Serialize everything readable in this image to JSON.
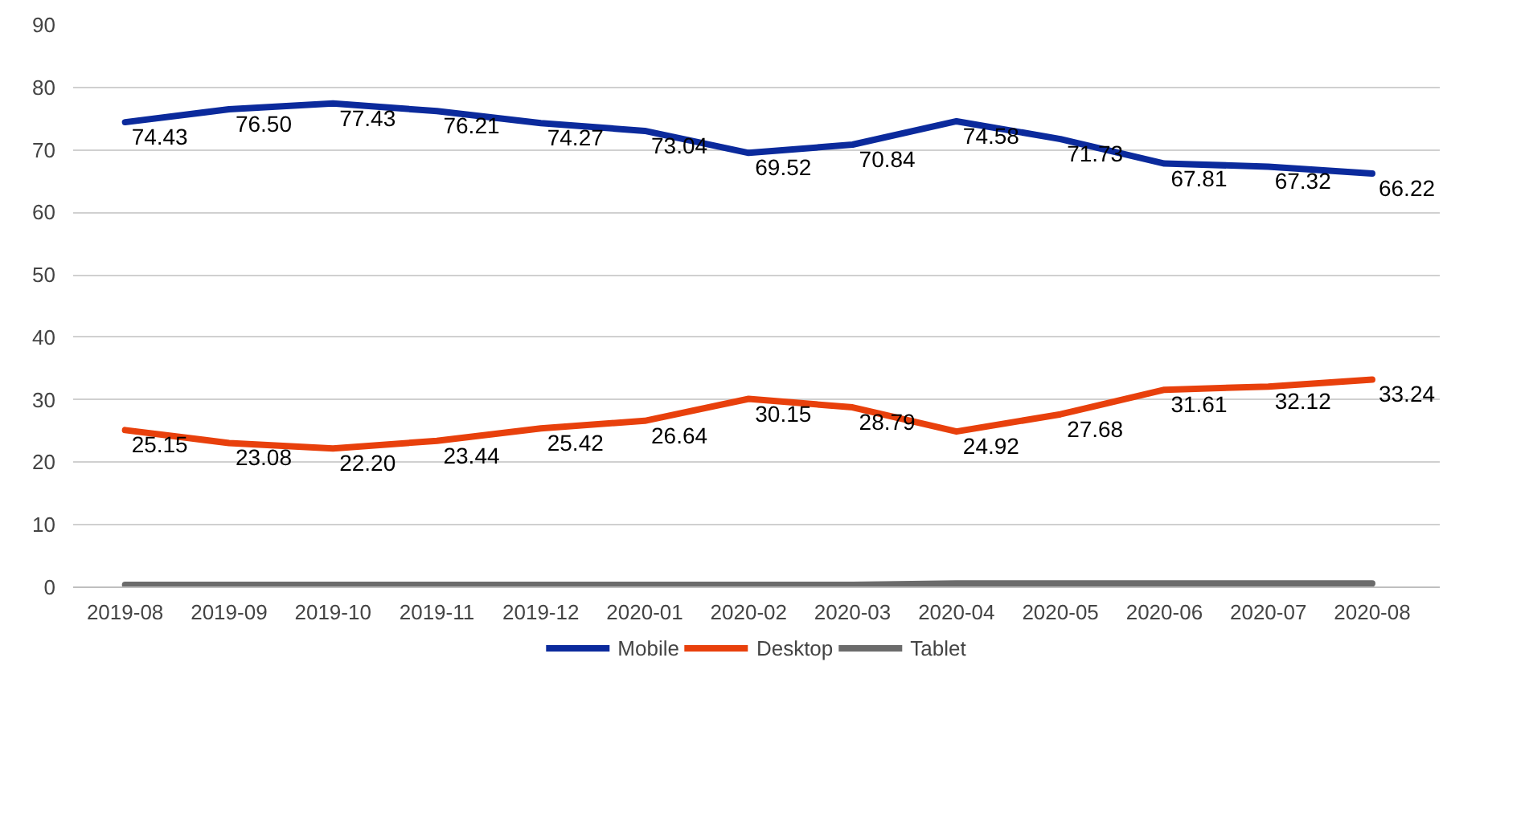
{
  "chart_data": {
    "type": "line",
    "categories": [
      "2019-08",
      "2019-09",
      "2019-10",
      "2019-11",
      "2019-12",
      "2020-01",
      "2020-02",
      "2020-03",
      "2020-04",
      "2020-05",
      "2020-06",
      "2020-07",
      "2020-08"
    ],
    "series": [
      {
        "name": "Mobile",
        "color": "#0b2a9c",
        "values": [
          74.43,
          76.5,
          77.43,
          76.21,
          74.27,
          73.04,
          69.52,
          70.84,
          74.58,
          71.73,
          67.81,
          67.32,
          66.22
        ],
        "value_labels": [
          "74.43",
          "76.50",
          "77.43",
          "76.21",
          "74.27",
          "73.04",
          "69.52",
          "70.84",
          "74.58",
          "71.73",
          "67.81",
          "67.32",
          "66.22"
        ]
      },
      {
        "name": "Desktop",
        "color": "#e8400c",
        "values": [
          25.15,
          23.08,
          22.2,
          23.44,
          25.42,
          26.64,
          30.15,
          28.79,
          24.92,
          27.68,
          31.61,
          32.12,
          33.24
        ],
        "value_labels": [
          "25.15",
          "23.08",
          "22.20",
          "23.44",
          "25.42",
          "26.64",
          "30.15",
          "28.79",
          "24.92",
          "27.68",
          "31.61",
          "32.12",
          "33.24"
        ]
      },
      {
        "name": "Tablet",
        "color": "#6b6b6b",
        "values": [
          0.4,
          0.4,
          0.4,
          0.4,
          0.4,
          0.4,
          0.4,
          0.4,
          0.6,
          0.6,
          0.6,
          0.6,
          0.6
        ]
      }
    ],
    "ylim": [
      0,
      90
    ],
    "yticks": [
      0,
      10,
      20,
      30,
      40,
      50,
      60,
      70,
      80,
      90
    ],
    "grid": "y",
    "legend": "bottom",
    "marker": "none",
    "line_style": "solid"
  }
}
